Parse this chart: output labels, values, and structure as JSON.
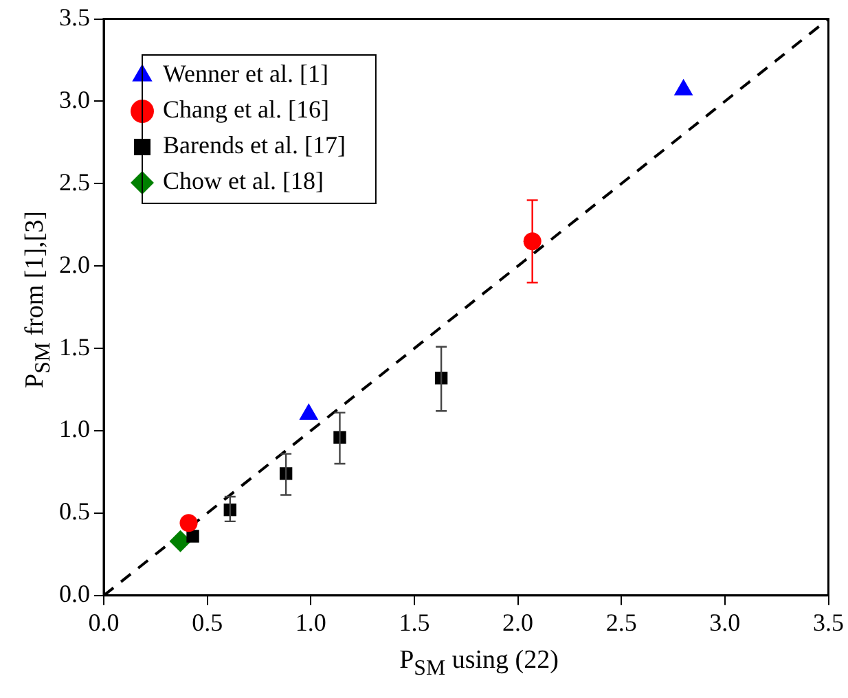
{
  "chart_data": {
    "type": "scatter",
    "xlabel": "P$_{SM}$ using (22)",
    "ylabel": "P$_{SM}$ from [1],[3]",
    "xlim": [
      0,
      3.5
    ],
    "xticks": [
      {
        "value": 0,
        "label": "0.0"
      },
      {
        "value": 0.5,
        "label": "0.5"
      },
      {
        "value": 1,
        "label": "1.0"
      },
      {
        "value": 1.5,
        "label": "1.5"
      },
      {
        "value": 2,
        "label": "2.0"
      },
      {
        "value": 2.5,
        "label": "2.5"
      },
      {
        "value": 3,
        "label": "3.0"
      },
      {
        "value": 3.5,
        "label": "3.5"
      }
    ],
    "ylim": [
      0,
      3.5
    ],
    "yticks": [
      {
        "value": 0,
        "label": "0.0"
      },
      {
        "value": 0.5,
        "label": "0.5"
      },
      {
        "value": 1,
        "label": "1.0"
      },
      {
        "value": 1.5,
        "label": "1.5"
      },
      {
        "value": 2,
        "label": "2.0"
      },
      {
        "value": 2.5,
        "label": "2.5"
      },
      {
        "value": 3,
        "label": "3.0"
      },
      {
        "value": 3.5,
        "label": "3.5"
      }
    ],
    "grid": false,
    "legend": "top left",
    "series": [
      {
        "name": "Wenner et al. [1]",
        "color": "#0000ff",
        "marker": "triangle",
        "x": [
          0.99,
          2.8
        ],
        "values": [
          1.1,
          3.07
        ]
      },
      {
        "name": "Chang et al. [16]",
        "color": "#ff0000",
        "marker": "circle",
        "x": [
          0.41,
          2.07
        ],
        "values": [
          0.44,
          2.15
        ],
        "errors": [
          null,
          [
            1.9,
            2.4
          ]
        ]
      },
      {
        "name": "Barends et al. [17]",
        "color": "#000000",
        "marker": "square",
        "x": [
          0.43,
          0.61,
          0.88,
          1.14,
          1.63
        ],
        "values": [
          0.36,
          0.52,
          0.74,
          0.96,
          1.32
        ],
        "errors": [
          null,
          [
            0.45,
            0.6
          ],
          [
            0.61,
            0.86
          ],
          [
            0.8,
            1.11
          ],
          [
            1.12,
            1.51
          ]
        ]
      },
      {
        "name": "Chow et al. [18]",
        "color": "#008000",
        "marker": "diamond",
        "x": [
          0.37
        ],
        "values": [
          0.33
        ]
      },
      {
        "type": "line",
        "color": "#000000",
        "marker": "none",
        "line_style": "dashed",
        "x": [
          0,
          3.5
        ],
        "values": [
          0,
          3.5
        ]
      }
    ]
  }
}
